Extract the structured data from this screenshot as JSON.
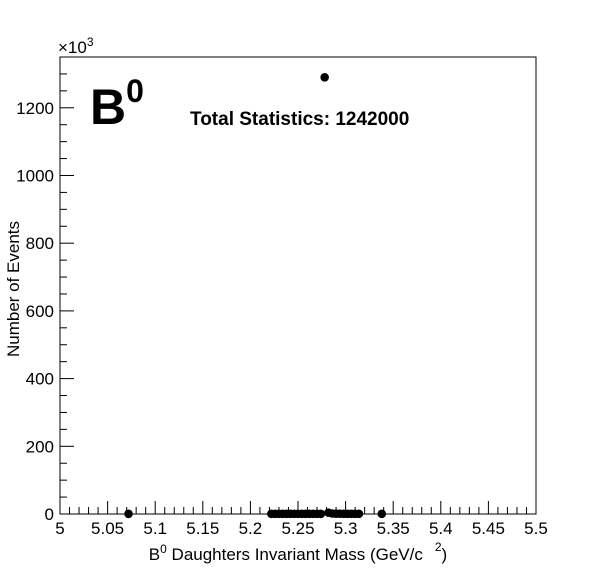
{
  "chart_data": {
    "type": "scatter",
    "title": "",
    "xlabel": {
      "pre": "B",
      "sup": "0",
      "mid": " Daughters Invariant Mass (GeV/c",
      "sup2": "2",
      "post": ")"
    },
    "ylabel": "Number of Events",
    "y_multiplier": {
      "base": "×10",
      "exp": "3"
    },
    "xlim": [
      5.0,
      5.5
    ],
    "ylim": [
      0,
      1350
    ],
    "x_ticks": [
      5,
      5.05,
      5.1,
      5.15,
      5.2,
      5.25,
      5.3,
      5.35,
      5.4,
      5.45,
      5.5
    ],
    "x_tick_labels": [
      "5",
      "5.05",
      "5.1",
      "5.15",
      "5.2",
      "5.25",
      "5.3",
      "5.35",
      "5.4",
      "5.45",
      "5.5"
    ],
    "y_ticks": [
      0,
      200,
      400,
      600,
      800,
      1000,
      1200
    ],
    "y_tick_labels": [
      "0",
      "200",
      "400",
      "600",
      "800",
      "1000",
      "1200"
    ],
    "particle_label": {
      "base": "B",
      "sup": "0"
    },
    "annotation": "Total Statistics: 1242000",
    "grid": false,
    "legend": "none",
    "marker_color": "#000000",
    "series": [
      {
        "x": [
          5.072,
          5.222,
          5.226,
          5.23,
          5.234,
          5.238,
          5.242,
          5.246,
          5.25,
          5.254,
          5.258,
          5.262,
          5.266,
          5.27,
          5.274,
          5.278,
          5.282,
          5.286,
          5.29,
          5.294,
          5.298,
          5.302,
          5.306,
          5.31,
          5.314,
          5.338
        ],
        "y": [
          0.5,
          0.5,
          0.5,
          0.5,
          0.5,
          0.5,
          0.5,
          0.5,
          0.5,
          0.5,
          0.5,
          0.5,
          0.5,
          0.5,
          0.5,
          1290,
          4,
          1.5,
          1,
          0.8,
          0.6,
          0.5,
          0.5,
          0.5,
          0.5,
          0.5
        ]
      }
    ]
  }
}
